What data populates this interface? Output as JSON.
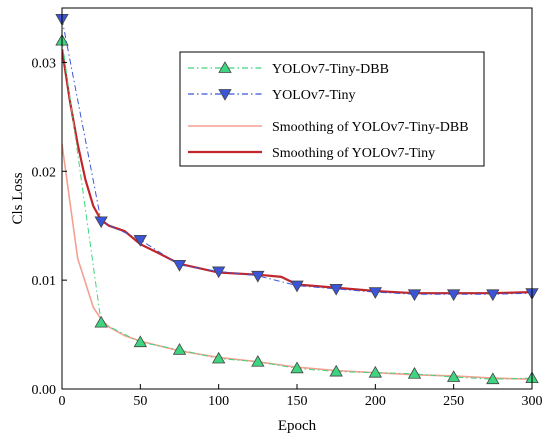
{
  "chart_data": {
    "type": "line",
    "title": "",
    "xlabel": "Epoch",
    "ylabel": "Cls Loss",
    "xlim": [
      0,
      300
    ],
    "ylim": [
      0,
      0.035
    ],
    "xticks": [
      0,
      50,
      100,
      150,
      200,
      250,
      300
    ],
    "xtick_labels": [
      "0",
      "50",
      "100",
      "150",
      "200",
      "250",
      "300"
    ],
    "yticks": [
      0,
      0.01,
      0.02,
      0.03
    ],
    "ytick_labels": [
      "0.00",
      "0.01",
      "0.02",
      "0.03"
    ],
    "grid": false,
    "legend_position": "top-right",
    "series": [
      {
        "name": "YOLOv7-Tiny-DBB",
        "color": "#3fd47f",
        "marker": "triangle-up",
        "style": "dash-dot",
        "x": [
          0,
          25,
          50,
          75,
          100,
          125,
          150,
          175,
          200,
          225,
          250,
          275,
          300
        ],
        "y": [
          0.032,
          0.0061,
          0.0043,
          0.0036,
          0.0028,
          0.0025,
          0.0019,
          0.0016,
          0.0015,
          0.0014,
          0.0011,
          0.0009,
          0.001
        ]
      },
      {
        "name": "YOLOv7-Tiny",
        "color": "#3b55d8",
        "marker": "triangle-down",
        "style": "dash-dot",
        "x": [
          0,
          25,
          50,
          75,
          100,
          125,
          150,
          175,
          200,
          225,
          250,
          275,
          300
        ],
        "y": [
          0.034,
          0.0154,
          0.0137,
          0.0114,
          0.0108,
          0.0104,
          0.0095,
          0.0092,
          0.0089,
          0.0087,
          0.0087,
          0.0087,
          0.0088
        ]
      },
      {
        "name": "Smoothing of YOLOv7-Tiny-DBB",
        "color": "#f4a091",
        "marker": "none",
        "style": "solid",
        "x": [
          0,
          10,
          20,
          25,
          30,
          40,
          50,
          75,
          100,
          125,
          150,
          175,
          200,
          225,
          250,
          275,
          300
        ],
        "y": [
          0.0225,
          0.012,
          0.0075,
          0.0064,
          0.0057,
          0.0049,
          0.0044,
          0.0035,
          0.0029,
          0.0025,
          0.002,
          0.0017,
          0.0015,
          0.0013,
          0.0012,
          0.001,
          0.0009
        ]
      },
      {
        "name": "Smoothing of YOLOv7-Tiny",
        "color": "#c0262a",
        "marker": "none",
        "style": "solid",
        "x": [
          0,
          5,
          10,
          15,
          20,
          25,
          30,
          40,
          50,
          60,
          75,
          100,
          125,
          140,
          150,
          175,
          200,
          225,
          250,
          275,
          300
        ],
        "y": [
          0.0312,
          0.0265,
          0.0225,
          0.0192,
          0.0168,
          0.0155,
          0.015,
          0.0145,
          0.0133,
          0.0126,
          0.0115,
          0.0107,
          0.0105,
          0.0103,
          0.0096,
          0.0093,
          0.009,
          0.0088,
          0.0088,
          0.0088,
          0.0089
        ]
      }
    ]
  }
}
